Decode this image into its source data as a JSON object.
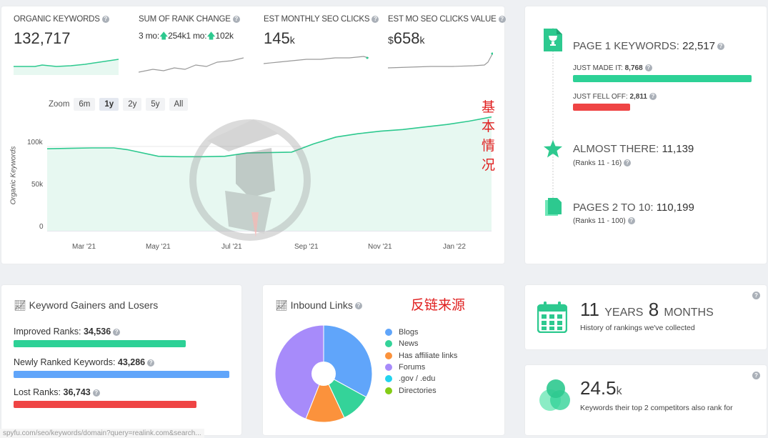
{
  "metrics": [
    {
      "label": "ORGANIC KEYWORDS",
      "value": "132,717",
      "unit": ""
    },
    {
      "label": "SUM OF RANK CHANGE",
      "line": "3 mo:",
      "v1": "254k",
      "line2": "1 mo:",
      "v2": "102k"
    },
    {
      "label": "EST MONTHLY SEO CLICKS",
      "value": "145",
      "unit": "k"
    },
    {
      "label": "EST MO SEO CLICKS VALUE",
      "prefix": "$",
      "value": "658",
      "unit": "k"
    }
  ],
  "zoom": {
    "label": "Zoom",
    "options": [
      "6m",
      "1y",
      "2y",
      "5y",
      "All"
    ],
    "active": "1y"
  },
  "annotation_top": "基本情况",
  "annotation_links": "反链来源",
  "chart_data": {
    "type": "area",
    "ylabel": "Organic Keywords",
    "y_ticks": [
      "0",
      "50k",
      "100k"
    ],
    "ylim": [
      0,
      140000
    ],
    "x_ticks": [
      "Mar '21",
      "May '21",
      "Jul '21",
      "Sep '21",
      "Nov '21",
      "Jan '22"
    ],
    "x": [
      0,
      0.05,
      0.1,
      0.15,
      0.18,
      0.25,
      0.3,
      0.35,
      0.4,
      0.45,
      0.5,
      0.55,
      0.6,
      0.65,
      0.7,
      0.75,
      0.8,
      0.85,
      0.9,
      0.95,
      1.0
    ],
    "values": [
      98000,
      98500,
      99000,
      99000,
      97000,
      89000,
      88500,
      88500,
      89000,
      93000,
      93500,
      94000,
      104000,
      112000,
      116000,
      119000,
      121000,
      124000,
      127000,
      131000,
      136000
    ]
  },
  "ranks": {
    "page1": {
      "label": "PAGE 1 KEYWORDS:",
      "value": "22,517"
    },
    "just_made": {
      "label": "JUST MADE IT:",
      "value": "8,768"
    },
    "just_fell": {
      "label": "JUST FELL OFF:",
      "value": "2,811"
    },
    "almost": {
      "label": "ALMOST THERE:",
      "value": "11,139",
      "sub": "(Ranks 11 - 16)"
    },
    "pages2": {
      "label": "PAGES 2 TO 10:",
      "value": "110,199",
      "sub": "(Ranks 11 - 100)"
    }
  },
  "gainers": {
    "title": "Keyword Gainers and Losers",
    "improved": {
      "label": "Improved Ranks:",
      "value": "34,536"
    },
    "newly": {
      "label": "Newly Ranked Keywords:",
      "value": "43,286"
    },
    "lost": {
      "label": "Lost Ranks:",
      "value": "36,743"
    }
  },
  "inbound": {
    "title": "Inbound Links",
    "legend": [
      {
        "name": "Blogs",
        "color": "#60a5fa"
      },
      {
        "name": "News",
        "color": "#34d399"
      },
      {
        "name": "Has affiliate links",
        "color": "#fb923c"
      },
      {
        "name": "Forums",
        "color": "#a78bfa"
      },
      {
        "name": ".gov / .edu",
        "color": "#22d3ee"
      },
      {
        "name": "Directories",
        "color": "#84cc16"
      }
    ],
    "slices": [
      33,
      10,
      13,
      44
    ]
  },
  "history": {
    "years": "11",
    "years_label": "YEARS",
    "months": "8",
    "months_label": "MONTHS",
    "sub": "History of rankings we've collected"
  },
  "competitors": {
    "value": "24.5",
    "unit": "k",
    "sub": "Keywords their top 2 competitors also rank for"
  },
  "status_url": "spyfu.com/seo/keywords/domain?query=realink.com&search..."
}
